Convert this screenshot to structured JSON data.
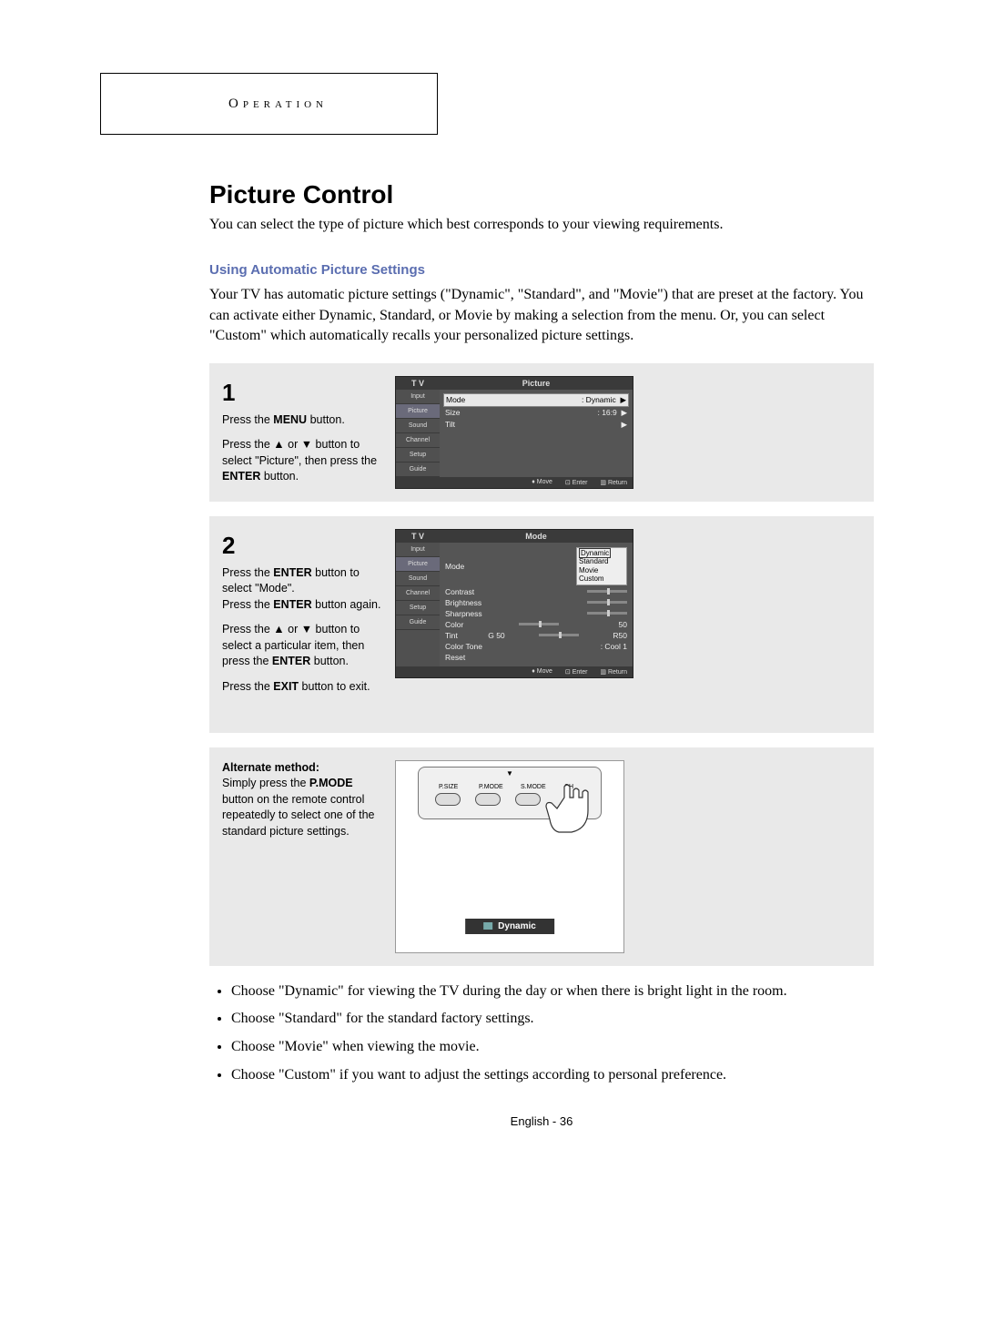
{
  "header": "Operation",
  "title": "Picture Control",
  "intro": "You can select the type of picture which best corresponds to your viewing requirements.",
  "subheading": "Using Automatic Picture Settings",
  "subheading_color": "#5a6db0",
  "body": "Your TV has automatic picture settings (\"Dynamic\", \"Standard\", and \"Movie\") that are preset at the factory. You can activate either Dynamic, Standard, or Movie by making a selection from the menu. Or, you can select \"Custom\" which automatically recalls your personalized picture settings.",
  "steps": [
    {
      "num": "1",
      "lines": [
        "Press the <b>MENU</b> button.",
        "",
        "Press the ▲ or ▼ button to select \"Picture\", then press the <b>ENTER</b> button."
      ]
    },
    {
      "num": "2",
      "lines": [
        "Press the <b>ENTER</b> button to select \"Mode\".",
        "Press the <b>ENTER</b> button again.",
        "",
        "Press the ▲ or ▼ button to select a particular item, then press the <b>ENTER</b> button.",
        "",
        "Press the <b>EXIT</b> button to exit."
      ]
    }
  ],
  "altmethod": {
    "heading": "Alternate method:",
    "text": "Simply press the <b>P.MODE</b> button on the remote control repeatedly to select one of the standard picture settings."
  },
  "osd1": {
    "title_left": "T V",
    "title_right": "Picture",
    "sidebar": [
      "Input",
      "Picture",
      "Sound",
      "Channel",
      "Setup",
      "Guide"
    ],
    "sidebar_selected": 1,
    "rows": [
      {
        "label": "Mode",
        "value": ":   Dynamic",
        "hl": true,
        "arrow": "▶"
      },
      {
        "label": "Size",
        "value": ":   16:9",
        "arrow": "▶"
      },
      {
        "label": "Tilt",
        "value": "",
        "arrow": "▶"
      }
    ],
    "footer": [
      "Move",
      "Enter",
      "Return"
    ]
  },
  "osd2": {
    "title_left": "T V",
    "title_right": "Mode",
    "sidebar": [
      "Input",
      "Picture",
      "Sound",
      "Channel",
      "Setup",
      "Guide"
    ],
    "sidebar_selected": 1,
    "rows": [
      {
        "label": "Mode",
        "value": ":",
        "dropdown": [
          "Dynamic",
          "Standard",
          "Movie",
          "Custom"
        ]
      },
      {
        "label": "Contrast",
        "slider": 50
      },
      {
        "label": "Brightness",
        "slider": 50
      },
      {
        "label": "Sharpness",
        "slider": 50
      },
      {
        "label": "Color",
        "slider": 50,
        "right": "50"
      },
      {
        "label": "Tint",
        "mid": "G 50",
        "slider": 50,
        "right": "R50"
      },
      {
        "label": "Color Tone",
        "value": ":   Cool 1"
      },
      {
        "label": "Reset",
        "value": ""
      }
    ],
    "footer": [
      "Move",
      "Enter",
      "Return"
    ]
  },
  "remote": {
    "labels": [
      "P.SIZE",
      "P.MODE",
      "S.MODE",
      "CH"
    ],
    "badge": "Dynamic"
  },
  "bullets": [
    "Choose \"Dynamic\" for viewing the TV during the day or when there is bright light in the room.",
    "Choose \"Standard\" for the standard factory settings.",
    "Choose \"Movie\" when viewing the movie.",
    "Choose \"Custom\" if you want to adjust the settings according to personal preference."
  ],
  "footer": "English - 36"
}
